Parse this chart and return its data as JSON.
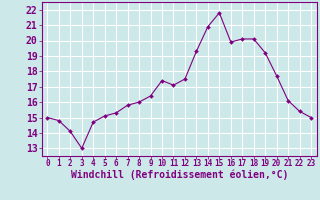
{
  "x": [
    0,
    1,
    2,
    3,
    4,
    5,
    6,
    7,
    8,
    9,
    10,
    11,
    12,
    13,
    14,
    15,
    16,
    17,
    18,
    19,
    20,
    21,
    22,
    23
  ],
  "y": [
    15.0,
    14.8,
    14.1,
    13.0,
    14.7,
    15.1,
    15.3,
    15.8,
    16.0,
    16.4,
    17.4,
    17.1,
    17.5,
    19.3,
    20.9,
    21.8,
    19.9,
    20.1,
    20.1,
    19.2,
    17.7,
    16.1,
    15.4,
    15.0
  ],
  "xlim": [
    -0.5,
    23.5
  ],
  "ylim": [
    12.5,
    22.5
  ],
  "yticks": [
    13,
    14,
    15,
    16,
    17,
    18,
    19,
    20,
    21,
    22
  ],
  "xticks": [
    0,
    1,
    2,
    3,
    4,
    5,
    6,
    7,
    8,
    9,
    10,
    11,
    12,
    13,
    14,
    15,
    16,
    17,
    18,
    19,
    20,
    21,
    22,
    23
  ],
  "line_color": "#800080",
  "marker_color": "#800080",
  "bg_color": "#cce8e8",
  "grid_color": "#ffffff",
  "xlabel": "Windchill (Refroidissement éolien,°C)",
  "xlabel_color": "#800080",
  "tick_color": "#800080",
  "tick_label_color": "#800080",
  "xlabel_fontsize": 7,
  "ytick_fontsize": 7,
  "xtick_fontsize": 5.5
}
